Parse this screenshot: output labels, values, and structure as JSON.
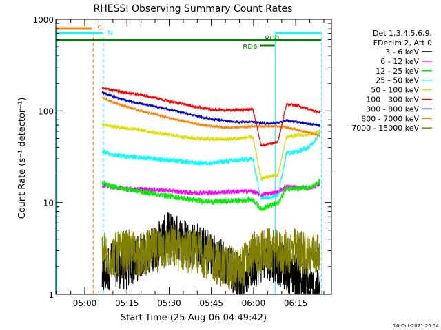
{
  "chart_data": {
    "type": "line",
    "title": "RHESSI Observing Summary Count Rates",
    "xlabel": "Start Time (25-Aug-06 04:49:42)",
    "ylabel": "Count Rate (s⁻¹ detector⁻¹)",
    "yscale": "log",
    "ylim": [
      1,
      1000
    ],
    "xlim_minutes": [
      0,
      98
    ],
    "x_ticks": [
      {
        "label": "05:00",
        "min": 10.3
      },
      {
        "label": "05:15",
        "min": 25.3
      },
      {
        "label": "05:30",
        "min": 40.3
      },
      {
        "label": "05:45",
        "min": 55.3
      },
      {
        "label": "06:00",
        "min": 70.3
      },
      {
        "label": "06:15",
        "min": 85.3
      }
    ],
    "y_ticks": [
      {
        "label": "1",
        "value": 1
      },
      {
        "label": "10",
        "value": 10
      },
      {
        "label": "100",
        "value": 100
      },
      {
        "label": "1000",
        "value": 1000
      }
    ],
    "legend": {
      "header": [
        "Det 1,3,4,5,6,9,",
        "FDecim 2, Att 0"
      ],
      "placement": "right"
    },
    "series": [
      {
        "name": "3 - 6 keV",
        "color": "#000000",
        "points": [
          [
            16.5,
            1.5
          ],
          [
            20,
            2.2
          ],
          [
            25,
            1.9
          ],
          [
            30,
            2.6
          ],
          [
            35,
            3.2
          ],
          [
            40,
            4.5
          ],
          [
            45,
            4.0
          ],
          [
            50,
            3.5
          ],
          [
            55,
            2.8
          ],
          [
            60,
            2.2
          ],
          [
            65,
            1.6
          ],
          [
            70,
            2.0
          ],
          [
            75,
            2.6
          ],
          [
            80,
            2.1
          ],
          [
            85,
            1.6
          ],
          [
            90,
            1.2
          ],
          [
            94,
            1.0
          ]
        ]
      },
      {
        "name": "6 - 12 keV",
        "color": "#ff00ff",
        "points": [
          [
            16.5,
            15.5
          ],
          [
            20,
            14.8
          ],
          [
            25,
            14.2
          ],
          [
            30,
            14.0
          ],
          [
            35,
            13.8
          ],
          [
            40,
            13.5
          ],
          [
            45,
            13.0
          ],
          [
            50,
            12.8
          ],
          [
            55,
            12.8
          ],
          [
            60,
            13.0
          ],
          [
            65,
            13.2
          ],
          [
            70,
            13.3
          ],
          [
            73,
            12.0
          ],
          [
            75,
            12.5
          ],
          [
            79,
            13.0
          ],
          [
            82,
            15.0
          ],
          [
            86,
            14.5
          ],
          [
            90,
            14.3
          ],
          [
            93,
            15.5
          ],
          [
            94,
            16.0
          ]
        ]
      },
      {
        "name": "12 - 25 keV",
        "color": "#00ee00",
        "points": [
          [
            16.5,
            16.0
          ],
          [
            20,
            15.0
          ],
          [
            25,
            14.0
          ],
          [
            30,
            13.2
          ],
          [
            35,
            12.5
          ],
          [
            40,
            11.8
          ],
          [
            45,
            11.2
          ],
          [
            50,
            10.5
          ],
          [
            55,
            10.2
          ],
          [
            60,
            10.3
          ],
          [
            65,
            10.5
          ],
          [
            70,
            10.8
          ],
          [
            73,
            8.5
          ],
          [
            75,
            9.0
          ],
          [
            79,
            9.8
          ],
          [
            82,
            14.5
          ],
          [
            86,
            14.0
          ],
          [
            90,
            14.5
          ],
          [
            93,
            16.0
          ],
          [
            94,
            17.5
          ]
        ]
      },
      {
        "name": "25 - 50 keV",
        "color": "#00ffff",
        "points": [
          [
            16.5,
            36
          ],
          [
            20,
            33
          ],
          [
            25,
            32
          ],
          [
            30,
            31
          ],
          [
            35,
            30
          ],
          [
            40,
            29
          ],
          [
            45,
            28
          ],
          [
            50,
            27
          ],
          [
            55,
            27
          ],
          [
            60,
            28
          ],
          [
            65,
            29
          ],
          [
            70,
            30
          ],
          [
            73,
            11
          ],
          [
            75,
            11.5
          ],
          [
            79,
            12
          ],
          [
            82,
            35
          ],
          [
            86,
            36
          ],
          [
            90,
            40
          ],
          [
            93,
            52
          ],
          [
            94,
            62
          ]
        ]
      },
      {
        "name": "50 - 100 keV",
        "color": "#dddd00",
        "points": [
          [
            16.5,
            72
          ],
          [
            20,
            68
          ],
          [
            25,
            65
          ],
          [
            30,
            62
          ],
          [
            35,
            58
          ],
          [
            40,
            55
          ],
          [
            45,
            52
          ],
          [
            50,
            50
          ],
          [
            55,
            49
          ],
          [
            60,
            49
          ],
          [
            65,
            50
          ],
          [
            70,
            52
          ],
          [
            73,
            18
          ],
          [
            75,
            19
          ],
          [
            79,
            20
          ],
          [
            82,
            52
          ],
          [
            86,
            54
          ],
          [
            90,
            55
          ],
          [
            93,
            58
          ],
          [
            94,
            60
          ]
        ]
      },
      {
        "name": "100 - 300 keV",
        "color": "#ff0000",
        "points": [
          [
            16.5,
            178
          ],
          [
            20,
            168
          ],
          [
            25,
            158
          ],
          [
            30,
            150
          ],
          [
            35,
            140
          ],
          [
            40,
            128
          ],
          [
            45,
            120
          ],
          [
            50,
            110
          ],
          [
            55,
            104
          ],
          [
            60,
            102
          ],
          [
            65,
            102
          ],
          [
            70,
            105
          ],
          [
            73,
            42
          ],
          [
            75,
            43
          ],
          [
            79,
            46
          ],
          [
            82,
            118
          ],
          [
            86,
            114
          ],
          [
            90,
            105
          ],
          [
            93,
            98
          ],
          [
            94,
            96
          ]
        ]
      },
      {
        "name": "300 - 800 keV",
        "color": "#0000cc",
        "points": [
          [
            16.5,
            160
          ],
          [
            20,
            145
          ],
          [
            25,
            130
          ],
          [
            30,
            120
          ],
          [
            35,
            112
          ],
          [
            40,
            104
          ],
          [
            45,
            96
          ],
          [
            50,
            88
          ],
          [
            55,
            82
          ],
          [
            60,
            78
          ],
          [
            65,
            75
          ],
          [
            70,
            76
          ],
          [
            73,
            74
          ],
          [
            75,
            73
          ],
          [
            79,
            74
          ],
          [
            82,
            78
          ],
          [
            86,
            76
          ],
          [
            90,
            72
          ],
          [
            93,
            70
          ],
          [
            94,
            69
          ]
        ]
      },
      {
        "name": "800 - 7000 keV",
        "color": "#ff8000",
        "points": [
          [
            16.5,
            140
          ],
          [
            20,
            125
          ],
          [
            25,
            112
          ],
          [
            30,
            100
          ],
          [
            35,
            92
          ],
          [
            40,
            84
          ],
          [
            45,
            78
          ],
          [
            50,
            72
          ],
          [
            55,
            68
          ],
          [
            60,
            66
          ],
          [
            65,
            66
          ],
          [
            70,
            68
          ],
          [
            73,
            68
          ],
          [
            75,
            68
          ],
          [
            79,
            68
          ],
          [
            82,
            66
          ],
          [
            86,
            62
          ],
          [
            90,
            58
          ],
          [
            93,
            55
          ],
          [
            94,
            54
          ]
        ]
      },
      {
        "name": "7000 - 15000 keV",
        "color": "#808000",
        "points": [
          [
            16.5,
            2.8
          ],
          [
            20,
            2.6
          ],
          [
            25,
            2.9
          ],
          [
            30,
            2.7
          ],
          [
            35,
            3.0
          ],
          [
            40,
            3.3
          ],
          [
            45,
            3.1
          ],
          [
            50,
            2.9
          ],
          [
            55,
            2.5
          ],
          [
            60,
            2.0
          ],
          [
            65,
            1.8
          ],
          [
            70,
            2.7
          ],
          [
            75,
            3.0
          ],
          [
            80,
            2.8
          ],
          [
            85,
            3.0
          ],
          [
            90,
            2.7
          ],
          [
            94,
            2.8
          ]
        ]
      }
    ],
    "annotations": [
      {
        "text": "S",
        "color": "#ff8000",
        "x_min": 13.3
      },
      {
        "text": "N",
        "color": "#00ffff",
        "x_min": 17.5
      },
      {
        "text": "RD0",
        "color": "#008000",
        "x_min": 75
      },
      {
        "text": "RD6",
        "color": "#008000",
        "x_min": 68
      }
    ],
    "vertical_lines": [
      {
        "x_min": 13.3,
        "color": "#ff8000",
        "style": "dashed"
      },
      {
        "x_min": 16.9,
        "color": "#00ffff",
        "style": "dashed"
      },
      {
        "x_min": 78.0,
        "color": "#00ffff",
        "style": "solid"
      },
      {
        "x_min": 94.5,
        "color": "#00ffff",
        "style": "dashed"
      }
    ]
  },
  "footer": {
    "timestamp": "16-Oct-2021 20:54"
  }
}
